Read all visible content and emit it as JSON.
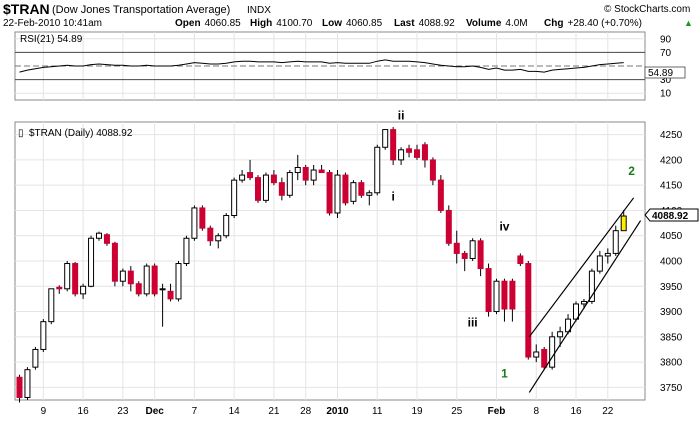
{
  "header": {
    "symbol": "$TRAN",
    "name": "(Dow Jones Transportation Average)",
    "exchange": "INDX",
    "copyright": "© StockCharts.com",
    "datetime": "22-Feb-2010 10:41am",
    "quote": {
      "open_label": "Open",
      "open": "4060.85",
      "high_label": "High",
      "high": "4100.70",
      "low_label": "Low",
      "low": "4060.85",
      "last_label": "Last",
      "last": "4088.92",
      "volume_label": "Volume",
      "volume": "4.0M",
      "chg_label": "Chg",
      "chg": "+28.40 (+0.70%)",
      "chg_arrow": "▲"
    }
  },
  "rsi_panel": {
    "label": "RSI(21) 54.89",
    "current": "54.89",
    "ticks": [
      90,
      70,
      50,
      30,
      10
    ]
  },
  "price_panel": {
    "label": "$TRAN (Daily) 4088.92",
    "current": "4088.92",
    "ticks": [
      4250,
      4200,
      4150,
      4100,
      4050,
      4000,
      3950,
      3900,
      3850,
      3800,
      3750
    ]
  },
  "x_axis_labels": [
    {
      "i": 3,
      "text": "9",
      "bold": false
    },
    {
      "i": 8,
      "text": "16",
      "bold": false
    },
    {
      "i": 13,
      "text": "23",
      "bold": false
    },
    {
      "i": 17,
      "text": "Dec",
      "bold": true
    },
    {
      "i": 22,
      "text": "7",
      "bold": false
    },
    {
      "i": 27,
      "text": "14",
      "bold": false
    },
    {
      "i": 32,
      "text": "21",
      "bold": false
    },
    {
      "i": 36,
      "text": "28",
      "bold": false
    },
    {
      "i": 40,
      "text": "2010",
      "bold": true
    },
    {
      "i": 45,
      "text": "11",
      "bold": false
    },
    {
      "i": 50,
      "text": "19",
      "bold": false
    },
    {
      "i": 55,
      "text": "25",
      "bold": false
    },
    {
      "i": 60,
      "text": "Feb",
      "bold": true
    },
    {
      "i": 65,
      "text": "8",
      "bold": false
    },
    {
      "i": 70,
      "text": "16",
      "bold": false
    },
    {
      "i": 74,
      "text": "22",
      "bold": false
    }
  ],
  "wave_labels": [
    {
      "i": 48,
      "y": 4280,
      "text": "ii",
      "color": "#000000"
    },
    {
      "i": 47,
      "y": 4120,
      "text": "i",
      "color": "#000000"
    },
    {
      "i": 61,
      "y": 4060,
      "text": "iv",
      "color": "#000000"
    },
    {
      "i": 57,
      "y": 3870,
      "text": "iii",
      "color": "#000000"
    },
    {
      "i": 61,
      "y": 3770,
      "text": "1",
      "color": "#1a7a1a"
    },
    {
      "i": 77,
      "y": 4170,
      "text": "2",
      "color": "#1a7a1a"
    }
  ],
  "chart_data": {
    "type": "candlestick",
    "title": "$TRAN (Dow Jones Transportation Average)",
    "period": "Daily",
    "ylim": [
      3725,
      4275
    ],
    "rsi_ylim": [
      0,
      100
    ],
    "candles": [
      [
        3770,
        3775,
        3720,
        3730
      ],
      [
        3730,
        3790,
        3725,
        3785
      ],
      [
        3790,
        3830,
        3785,
        3825
      ],
      [
        3825,
        3885,
        3820,
        3880
      ],
      [
        3880,
        3945,
        3875,
        3945
      ],
      [
        3948,
        3952,
        3935,
        3945
      ],
      [
        3945,
        4000,
        3940,
        3995
      ],
      [
        3995,
        3998,
        3930,
        3935
      ],
      [
        3935,
        3955,
        3925,
        3950
      ],
      [
        3950,
        4050,
        3948,
        4045
      ],
      [
        4045,
        4058,
        4040,
        4055
      ],
      [
        4052,
        4055,
        4030,
        4035
      ],
      [
        4035,
        4038,
        3950,
        3960
      ],
      [
        3960,
        3985,
        3950,
        3980
      ],
      [
        3980,
        3990,
        3940,
        3955
      ],
      [
        3955,
        3960,
        3930,
        3935
      ],
      [
        3935,
        3995,
        3930,
        3990
      ],
      [
        3990,
        3995,
        3930,
        3935
      ],
      [
        3945,
        3955,
        3870,
        3945
      ],
      [
        3940,
        3955,
        3920,
        3925
      ],
      [
        3925,
        4000,
        3920,
        3995
      ],
      [
        3995,
        4050,
        3990,
        4045
      ],
      [
        4045,
        4110,
        4040,
        4105
      ],
      [
        4105,
        4110,
        4060,
        4065
      ],
      [
        4065,
        4070,
        4030,
        4040
      ],
      [
        4040,
        4055,
        4025,
        4050
      ],
      [
        4050,
        4095,
        4045,
        4090
      ],
      [
        4090,
        4165,
        4085,
        4160
      ],
      [
        4160,
        4180,
        4155,
        4170
      ],
      [
        4175,
        4200,
        4160,
        4165
      ],
      [
        4165,
        4170,
        4115,
        4120
      ],
      [
        4120,
        4175,
        4115,
        4170
      ],
      [
        4170,
        4180,
        4150,
        4155
      ],
      [
        4155,
        4165,
        4120,
        4130
      ],
      [
        4130,
        4180,
        4125,
        4175
      ],
      [
        4175,
        4210,
        4160,
        4185
      ],
      [
        4185,
        4190,
        4150,
        4160
      ],
      [
        4160,
        4190,
        4150,
        4180
      ],
      [
        4180,
        4190,
        4175,
        4175
      ],
      [
        4175,
        4180,
        4090,
        4095
      ],
      [
        4095,
        4180,
        4085,
        4170
      ],
      [
        4170,
        4175,
        4110,
        4115
      ],
      [
        4118,
        4160,
        4112,
        4155
      ],
      [
        4155,
        4160,
        4125,
        4130
      ],
      [
        4130,
        4140,
        4110,
        4135
      ],
      [
        4135,
        4230,
        4130,
        4225
      ],
      [
        4225,
        4260,
        4220,
        4260
      ],
      [
        4260,
        4265,
        4190,
        4200
      ],
      [
        4200,
        4225,
        4190,
        4220
      ],
      [
        4222,
        4230,
        4205,
        4215
      ],
      [
        4220,
        4230,
        4200,
        4205
      ],
      [
        4230,
        4235,
        4185,
        4200
      ],
      [
        4200,
        4205,
        4150,
        4160
      ],
      [
        4160,
        4170,
        4095,
        4100
      ],
      [
        4100,
        4110,
        4030,
        4035
      ],
      [
        4035,
        4060,
        3995,
        4015
      ],
      [
        4015,
        4020,
        3980,
        4005
      ],
      [
        4005,
        4045,
        4000,
        4040
      ],
      [
        4040,
        4045,
        3970,
        3985
      ],
      [
        3985,
        3995,
        3890,
        3900
      ],
      [
        3900,
        3965,
        3895,
        3960
      ],
      [
        3960,
        3965,
        3880,
        3905
      ],
      [
        3960,
        3965,
        3880,
        3905
      ],
      [
        4010,
        4015,
        3990,
        3995
      ],
      [
        3995,
        4000,
        3805,
        3810
      ],
      [
        3810,
        3835,
        3800,
        3820
      ],
      [
        3825,
        3830,
        3785,
        3790
      ],
      [
        3790,
        3860,
        3785,
        3850
      ],
      [
        3850,
        3870,
        3830,
        3860
      ],
      [
        3860,
        3895,
        3855,
        3885
      ],
      [
        3885,
        3920,
        3880,
        3915
      ],
      [
        3915,
        3925,
        3905,
        3920
      ],
      [
        3920,
        3985,
        3915,
        3980
      ],
      [
        3980,
        4020,
        3975,
        4010
      ],
      [
        4010,
        4025,
        3995,
        4015
      ],
      [
        4015,
        4070,
        4010,
        4060
      ],
      [
        4060,
        4101,
        4060,
        4089
      ]
    ],
    "rsi": [
      41,
      44,
      46,
      48,
      49,
      50,
      51,
      50,
      50,
      52,
      53,
      52,
      51,
      51,
      50,
      50,
      51,
      50,
      50,
      50,
      51,
      53,
      55,
      54,
      53,
      53,
      54,
      56,
      57,
      57,
      56,
      56,
      56,
      55,
      56,
      57,
      56,
      56,
      56,
      54,
      55,
      54,
      54,
      54,
      54,
      57,
      59,
      57,
      57,
      57,
      56,
      55,
      53,
      51,
      50,
      49,
      49,
      50,
      48,
      45,
      47,
      44,
      44,
      45,
      42,
      42,
      41,
      44,
      45,
      46,
      47,
      48,
      50,
      52,
      53,
      54,
      55
    ]
  }
}
